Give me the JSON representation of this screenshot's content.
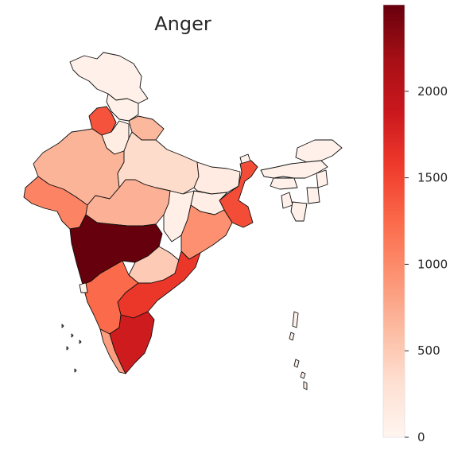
{
  "title": "Anger",
  "colormap": {
    "name": "Reds",
    "min": 0,
    "max": 2500,
    "stops": [
      "#fff5f0",
      "#fee0d2",
      "#fcbba1",
      "#fc9272",
      "#fb6a4a",
      "#ef3b2c",
      "#cb181d",
      "#a50f15",
      "#67000d"
    ]
  },
  "colorbar": {
    "ticks": [
      {
        "value": 0,
        "label": "0"
      },
      {
        "value": 500,
        "label": "500"
      },
      {
        "value": 1000,
        "label": "1000"
      },
      {
        "value": 1500,
        "label": "1500"
      },
      {
        "value": 2000,
        "label": "2000"
      }
    ]
  },
  "regions": [
    {
      "name": "Jammu and Kashmir",
      "value": 60
    },
    {
      "name": "Himachal Pradesh",
      "value": 60
    },
    {
      "name": "Punjab",
      "value": 1400
    },
    {
      "name": "Uttarakhand",
      "value": 650
    },
    {
      "name": "Haryana",
      "value": 120
    },
    {
      "name": "Rajasthan",
      "value": 680
    },
    {
      "name": "Uttar Pradesh",
      "value": 350
    },
    {
      "name": "Bihar",
      "value": 150
    },
    {
      "name": "Sikkim",
      "value": 60
    },
    {
      "name": "Arunachal Pradesh",
      "value": 60
    },
    {
      "name": "Assam",
      "value": 60
    },
    {
      "name": "Nagaland",
      "value": 60
    },
    {
      "name": "Meghalaya",
      "value": 60
    },
    {
      "name": "Manipur",
      "value": 60
    },
    {
      "name": "Mizoram",
      "value": 60
    },
    {
      "name": "Tripura",
      "value": 60
    },
    {
      "name": "West Bengal",
      "value": 1450
    },
    {
      "name": "Jharkhand",
      "value": 100
    },
    {
      "name": "Gujarat",
      "value": 1050
    },
    {
      "name": "Madhya Pradesh",
      "value": 700
    },
    {
      "name": "Chhattisgarh",
      "value": 90
    },
    {
      "name": "Odisha",
      "value": 950
    },
    {
      "name": "Maharashtra",
      "value": 2500
    },
    {
      "name": "Telangana",
      "value": 500
    },
    {
      "name": "Andhra Pradesh",
      "value": 1600
    },
    {
      "name": "Karnataka",
      "value": 1250
    },
    {
      "name": "Goa",
      "value": 60
    },
    {
      "name": "Kerala",
      "value": 850
    },
    {
      "name": "Tamil Nadu",
      "value": 1850
    },
    {
      "name": "Andaman and Nicobar Islands",
      "value": 60
    },
    {
      "name": "Lakshadweep",
      "value": 60
    }
  ]
}
